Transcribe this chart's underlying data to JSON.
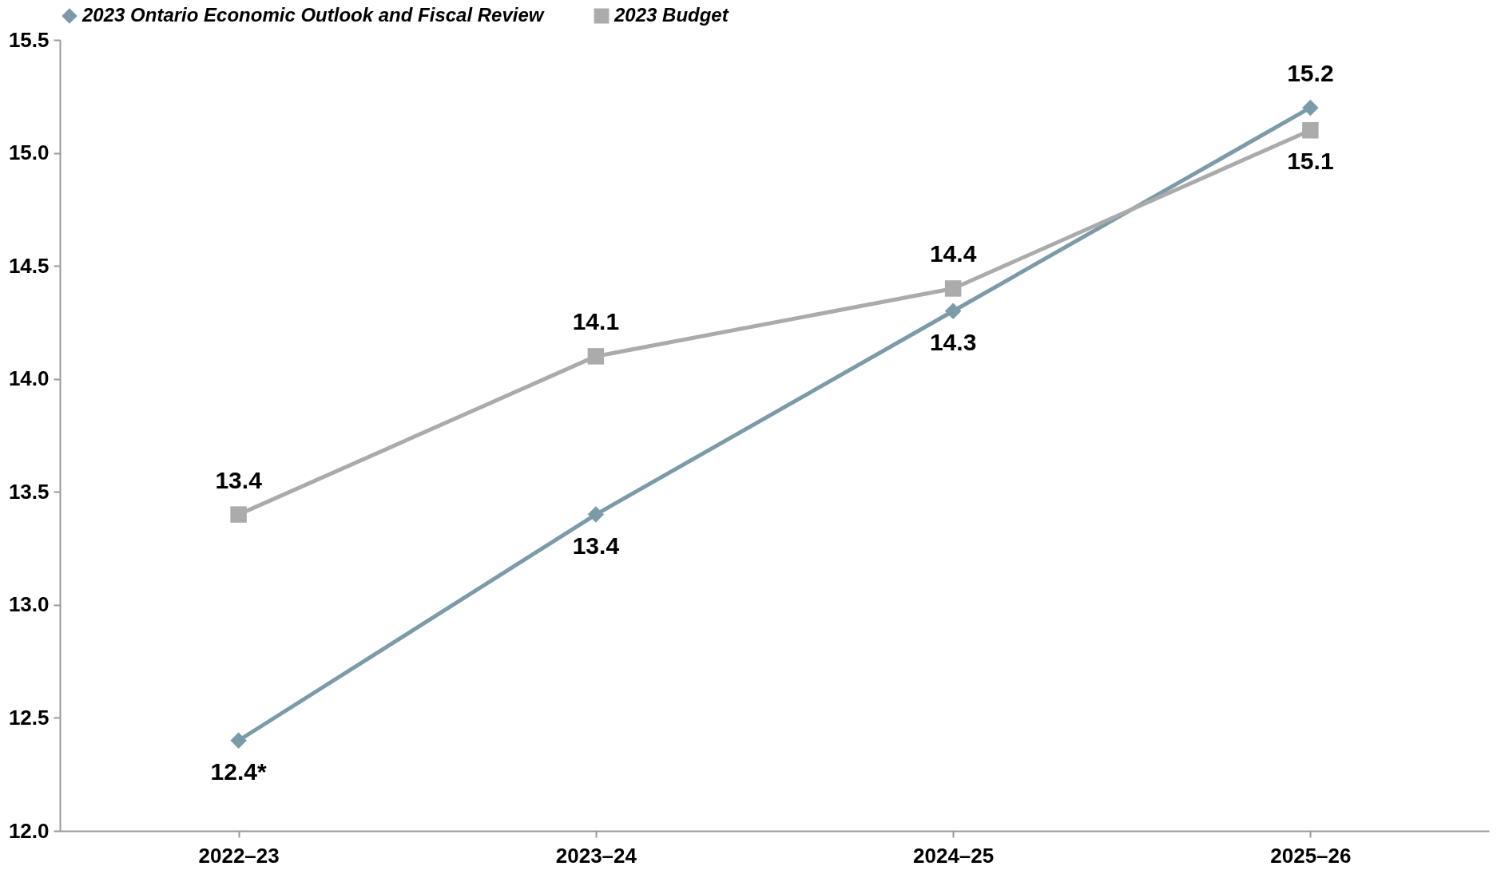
{
  "chart_data": {
    "type": "line",
    "categories": [
      "2022–23",
      "2023–24",
      "2024–25",
      "2025–26"
    ],
    "series": [
      {
        "name": "2023 Ontario Economic Outlook and Fiscal Review",
        "color": "#7b9ba9",
        "marker": "diamond",
        "values": [
          12.4,
          13.4,
          14.3,
          15.2
        ],
        "value_labels": [
          "12.4*",
          "13.4",
          "14.3",
          "15.2"
        ]
      },
      {
        "name": "2023 Budget",
        "color": "#ababab",
        "marker": "square",
        "values": [
          13.4,
          14.1,
          14.4,
          15.1
        ],
        "value_labels": [
          "13.4",
          "14.1",
          "14.4",
          "15.1"
        ]
      }
    ],
    "ylim": [
      12,
      15.5
    ],
    "yticks": [
      {
        "value": 12,
        "label": "12.0"
      },
      {
        "value": 12.5,
        "label": "12.5"
      },
      {
        "value": 13,
        "label": "13.0"
      },
      {
        "value": 13.5,
        "label": "13.5"
      },
      {
        "value": 14,
        "label": "14.0"
      },
      {
        "value": 14.5,
        "label": "14.5"
      },
      {
        "value": 15,
        "label": "15.0"
      },
      {
        "value": 15.5,
        "label": "15.5"
      }
    ],
    "grid": false,
    "legend": "top"
  }
}
